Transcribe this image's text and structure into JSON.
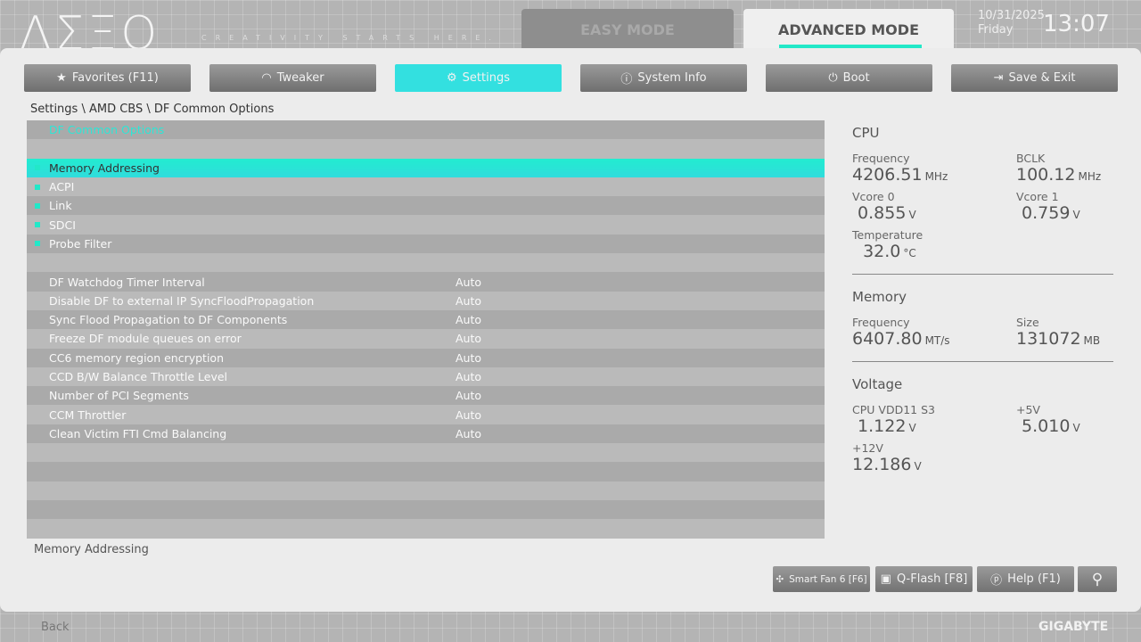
{
  "header": {
    "logo": "AERO",
    "tagline": "CREATIVITY STARTS HERE.",
    "easy_mode": "EASY MODE",
    "advanced_mode": "ADVANCED MODE",
    "date": "10/31/2025",
    "day": "Friday",
    "time": "13:07"
  },
  "nav": [
    {
      "label": "Favorites (F11)",
      "icon": "star-folder-icon"
    },
    {
      "label": "Tweaker",
      "icon": "gauge-icon"
    },
    {
      "label": "Settings",
      "icon": "gear-icon",
      "active": true
    },
    {
      "label": "System Info",
      "icon": "info-icon"
    },
    {
      "label": "Boot",
      "icon": "power-icon"
    },
    {
      "label": "Save & Exit",
      "icon": "exit-icon"
    }
  ],
  "breadcrumb": "Settings \\ AMD CBS \\ DF Common Options",
  "list": {
    "title": "DF Common Options",
    "submenus": [
      "Memory Addressing",
      "ACPI",
      "Link",
      "SDCI",
      "Probe Filter"
    ],
    "settings": [
      {
        "label": "DF Watchdog Timer Interval",
        "value": "Auto"
      },
      {
        "label": "Disable DF to external IP SyncFloodPropagation",
        "value": "Auto"
      },
      {
        "label": "Sync Flood Propagation to DF Components",
        "value": "Auto"
      },
      {
        "label": "Freeze DF module queues on error",
        "value": "Auto"
      },
      {
        "label": "CC6 memory region encryption",
        "value": "Auto"
      },
      {
        "label": "CCD B/W Balance Throttle Level",
        "value": "Auto"
      },
      {
        "label": "Number of PCI Segments",
        "value": "Auto"
      },
      {
        "label": "CCM Throttler",
        "value": "Auto"
      },
      {
        "label": "Clean Victim FTI Cmd Balancing",
        "value": "Auto"
      }
    ]
  },
  "help_text": "Memory Addressing",
  "sysinfo": {
    "cpu": {
      "title": "CPU",
      "freq_label": "Frequency",
      "freq": "4206.51",
      "freq_unit": "MHz",
      "bclk_label": "BCLK",
      "bclk": "100.12",
      "bclk_unit": "MHz",
      "vcore0_label": "Vcore 0",
      "vcore0": "0.855",
      "vcore1_label": "Vcore 1",
      "vcore1": "0.759",
      "v": "V",
      "temp_label": "Temperature",
      "temp": "32.0",
      "temp_unit": "°C"
    },
    "memory": {
      "title": "Memory",
      "freq_label": "Frequency",
      "freq": "6407.80",
      "freq_unit": "MT/s",
      "size_label": "Size",
      "size": "131072",
      "size_unit": "MB"
    },
    "voltage": {
      "title": "Voltage",
      "vdd_label": "CPU VDD11 S3",
      "vdd": "1.122",
      "p5_label": "+5V",
      "p5": "5.010",
      "p12_label": "+12V",
      "p12": "12.186",
      "v": "V"
    }
  },
  "bottom": {
    "smartfan": "Smart Fan 6 [F6]",
    "qflash": "Q-Flash [F8]",
    "help": "Help (F1)",
    "back": "Back",
    "brand": "GIGABYTE"
  },
  "colors": {
    "accent": "#22e8c8"
  }
}
